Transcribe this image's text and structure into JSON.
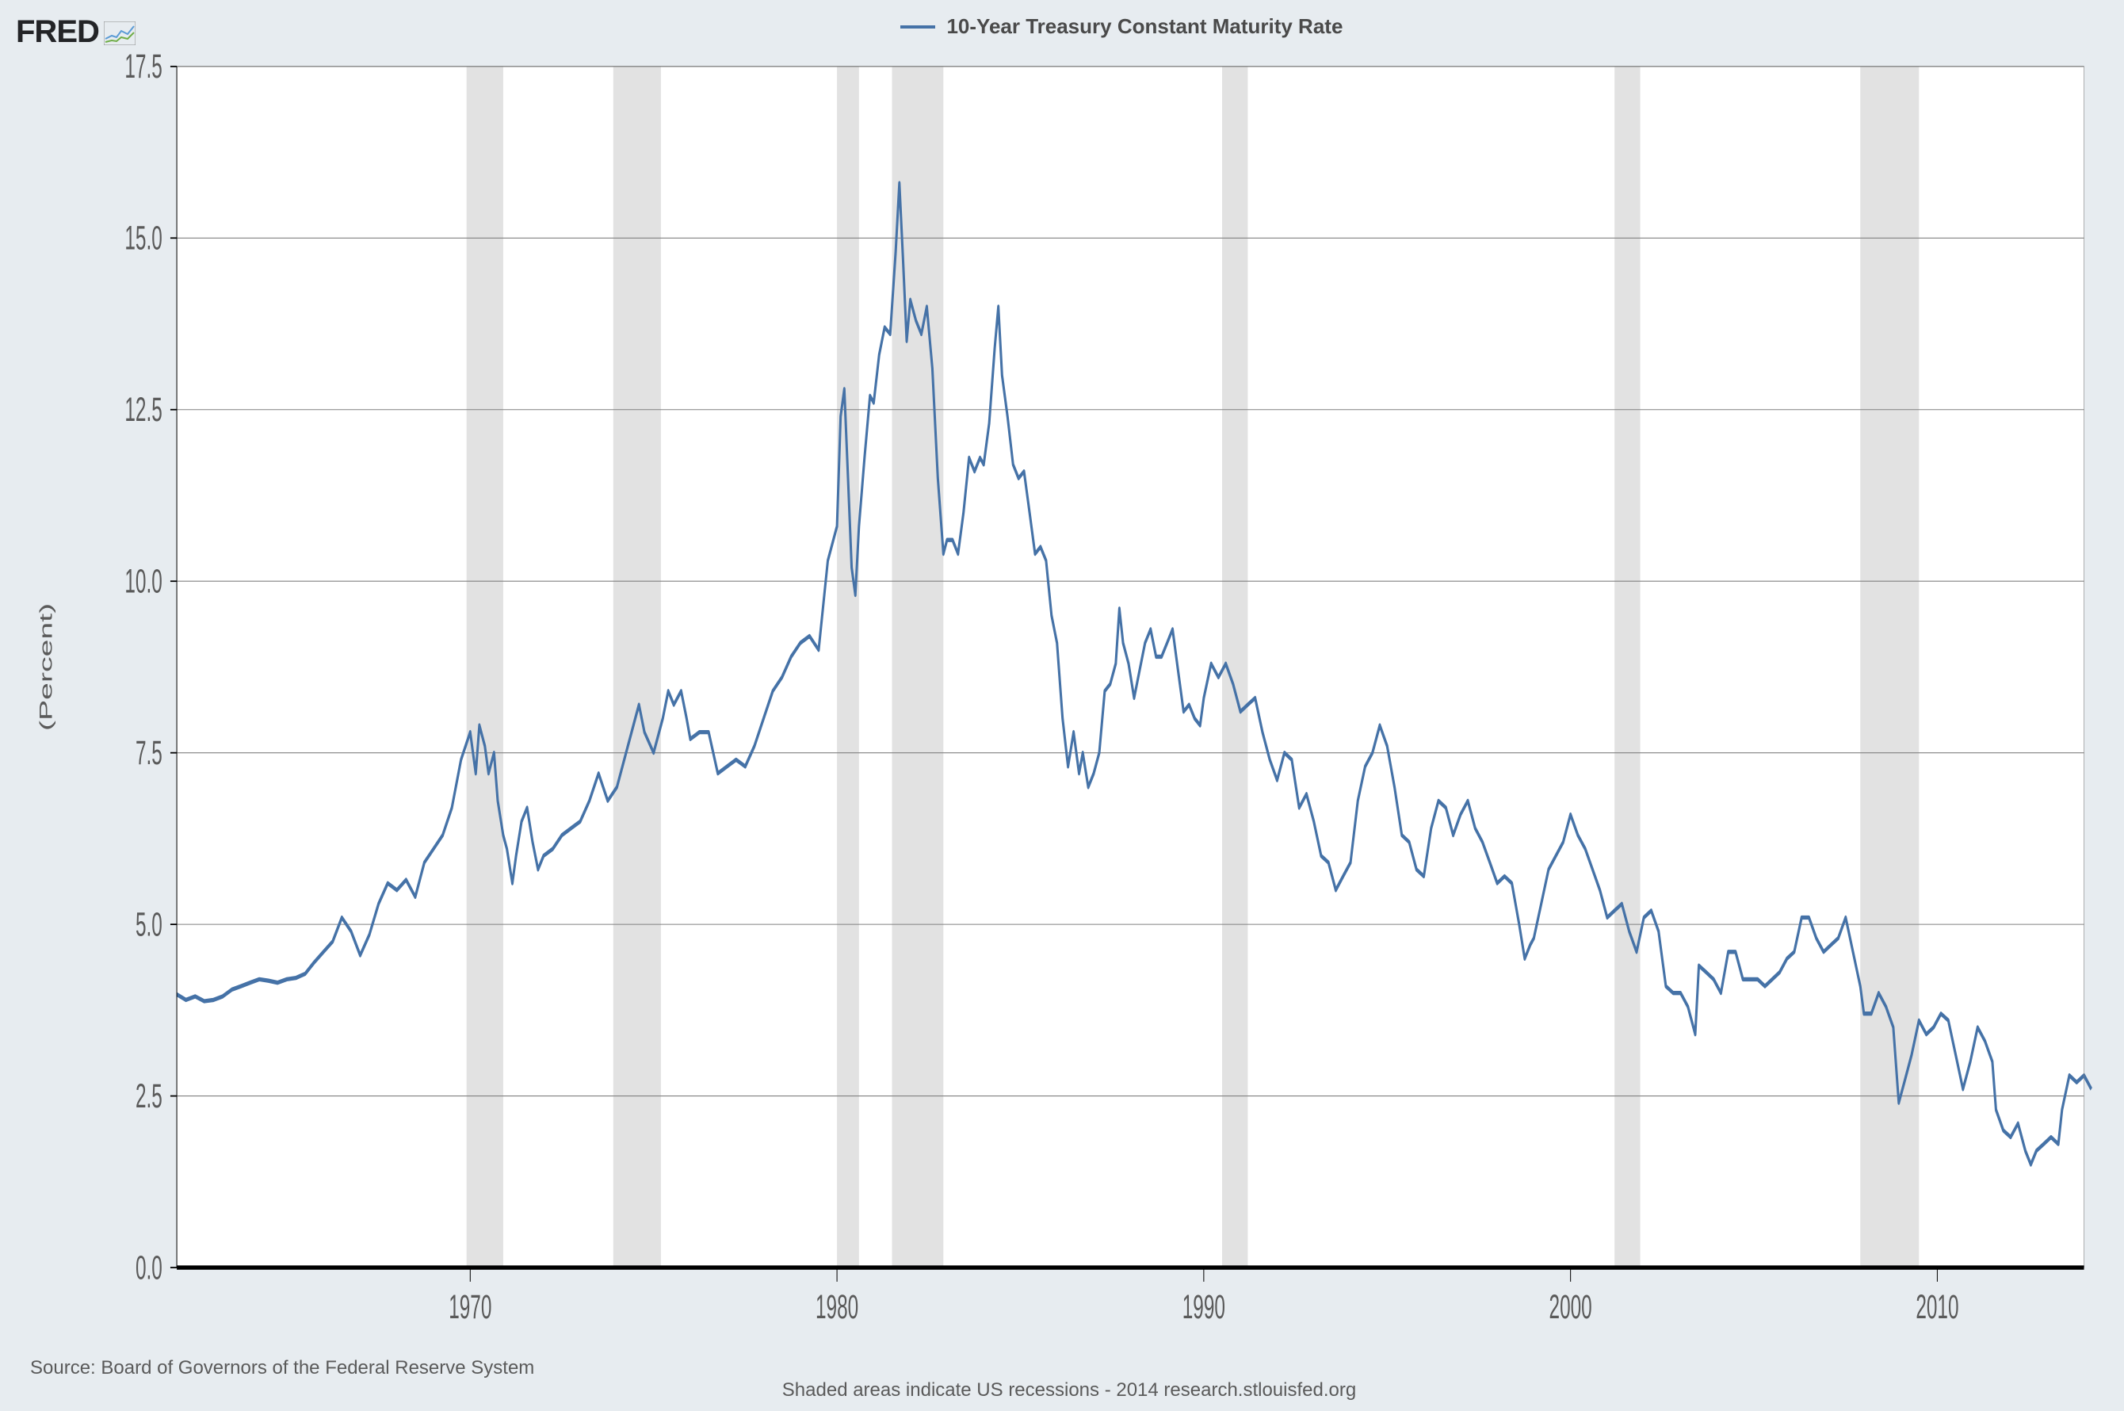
{
  "logo_text": "FRED",
  "legend_label": "10-Year Treasury Constant Maturity Rate",
  "ylabel": "(Percent)",
  "source_line": "Source: Board of Governors of the Federal Reserve System",
  "subnote_line": "Shaded areas indicate US recessions - 2014 research.stlouisfed.org",
  "chart": {
    "type": "line",
    "background_color": "#ffffff",
    "outer_background": "#e7ecf0",
    "grid_color": "#808080",
    "grid_width": 0.6,
    "axis_color": "#000000",
    "baseline_width": 3,
    "line_color": "#4572a7",
    "line_width": 3,
    "recession_fill": "#e2e2e2",
    "tick_label_color": "#5a5a5a",
    "tick_fontsize": 24,
    "ylabel_fontsize": 22,
    "title_fontsize": 26,
    "xlim": [
      1962,
      2014
    ],
    "ylim": [
      0,
      17.5
    ],
    "yticks": [
      0.0,
      2.5,
      5.0,
      7.5,
      10.0,
      12.5,
      15.0,
      17.5
    ],
    "ytick_labels": [
      "0.0",
      "2.5",
      "5.0",
      "7.5",
      "10.0",
      "12.5",
      "15.0",
      "17.5"
    ],
    "xticks": [
      1970,
      1980,
      1990,
      2000,
      2010
    ],
    "xtick_labels": [
      "1970",
      "1980",
      "1990",
      "2000",
      "2010"
    ],
    "recessions": [
      [
        1969.9,
        1970.9
      ],
      [
        1973.9,
        1975.2
      ],
      [
        1980.0,
        1980.6
      ],
      [
        1981.5,
        1982.9
      ],
      [
        1990.5,
        1991.2
      ],
      [
        2001.2,
        2001.9
      ],
      [
        2007.9,
        2009.5
      ]
    ],
    "series": [
      [
        1962.0,
        3.98
      ],
      [
        1962.25,
        3.9
      ],
      [
        1962.5,
        3.95
      ],
      [
        1962.75,
        3.88
      ],
      [
        1963.0,
        3.9
      ],
      [
        1963.25,
        3.95
      ],
      [
        1963.5,
        4.05
      ],
      [
        1963.75,
        4.1
      ],
      [
        1964.0,
        4.15
      ],
      [
        1964.25,
        4.2
      ],
      [
        1964.5,
        4.18
      ],
      [
        1964.75,
        4.15
      ],
      [
        1965.0,
        4.2
      ],
      [
        1965.25,
        4.22
      ],
      [
        1965.5,
        4.28
      ],
      [
        1965.75,
        4.45
      ],
      [
        1966.0,
        4.6
      ],
      [
        1966.25,
        4.75
      ],
      [
        1966.5,
        5.1
      ],
      [
        1966.75,
        4.9
      ],
      [
        1967.0,
        4.55
      ],
      [
        1967.25,
        4.85
      ],
      [
        1967.5,
        5.3
      ],
      [
        1967.75,
        5.6
      ],
      [
        1968.0,
        5.5
      ],
      [
        1968.25,
        5.65
      ],
      [
        1968.5,
        5.4
      ],
      [
        1968.75,
        5.9
      ],
      [
        1969.0,
        6.1
      ],
      [
        1969.25,
        6.3
      ],
      [
        1969.5,
        6.7
      ],
      [
        1969.75,
        7.4
      ],
      [
        1970.0,
        7.8
      ],
      [
        1970.15,
        7.2
      ],
      [
        1970.25,
        7.9
      ],
      [
        1970.4,
        7.6
      ],
      [
        1970.5,
        7.2
      ],
      [
        1970.65,
        7.5
      ],
      [
        1970.75,
        6.8
      ],
      [
        1970.9,
        6.3
      ],
      [
        1971.0,
        6.1
      ],
      [
        1971.15,
        5.6
      ],
      [
        1971.25,
        6.0
      ],
      [
        1971.4,
        6.5
      ],
      [
        1971.55,
        6.7
      ],
      [
        1971.7,
        6.2
      ],
      [
        1971.85,
        5.8
      ],
      [
        1972.0,
        6.0
      ],
      [
        1972.25,
        6.1
      ],
      [
        1972.5,
        6.3
      ],
      [
        1972.75,
        6.4
      ],
      [
        1973.0,
        6.5
      ],
      [
        1973.25,
        6.8
      ],
      [
        1973.5,
        7.2
      ],
      [
        1973.75,
        6.8
      ],
      [
        1974.0,
        7.0
      ],
      [
        1974.25,
        7.5
      ],
      [
        1974.5,
        8.0
      ],
      [
        1974.6,
        8.2
      ],
      [
        1974.75,
        7.8
      ],
      [
        1975.0,
        7.5
      ],
      [
        1975.25,
        8.0
      ],
      [
        1975.4,
        8.4
      ],
      [
        1975.55,
        8.2
      ],
      [
        1975.75,
        8.4
      ],
      [
        1975.9,
        8.0
      ],
      [
        1976.0,
        7.7
      ],
      [
        1976.25,
        7.8
      ],
      [
        1976.5,
        7.8
      ],
      [
        1976.75,
        7.2
      ],
      [
        1977.0,
        7.3
      ],
      [
        1977.25,
        7.4
      ],
      [
        1977.5,
        7.3
      ],
      [
        1977.75,
        7.6
      ],
      [
        1978.0,
        8.0
      ],
      [
        1978.25,
        8.4
      ],
      [
        1978.5,
        8.6
      ],
      [
        1978.75,
        8.9
      ],
      [
        1979.0,
        9.1
      ],
      [
        1979.25,
        9.2
      ],
      [
        1979.5,
        9.0
      ],
      [
        1979.75,
        10.3
      ],
      [
        1980.0,
        10.8
      ],
      [
        1980.1,
        12.4
      ],
      [
        1980.2,
        12.8
      ],
      [
        1980.3,
        11.5
      ],
      [
        1980.4,
        10.2
      ],
      [
        1980.5,
        9.8
      ],
      [
        1980.6,
        10.8
      ],
      [
        1980.75,
        11.8
      ],
      [
        1980.9,
        12.7
      ],
      [
        1981.0,
        12.6
      ],
      [
        1981.15,
        13.3
      ],
      [
        1981.3,
        13.7
      ],
      [
        1981.45,
        13.6
      ],
      [
        1981.6,
        14.8
      ],
      [
        1981.7,
        15.8
      ],
      [
        1981.8,
        14.7
      ],
      [
        1981.9,
        13.5
      ],
      [
        1982.0,
        14.1
      ],
      [
        1982.15,
        13.8
      ],
      [
        1982.3,
        13.6
      ],
      [
        1982.45,
        14.0
      ],
      [
        1982.6,
        13.1
      ],
      [
        1982.75,
        11.5
      ],
      [
        1982.9,
        10.4
      ],
      [
        1983.0,
        10.6
      ],
      [
        1983.15,
        10.6
      ],
      [
        1983.3,
        10.4
      ],
      [
        1983.45,
        11.0
      ],
      [
        1983.6,
        11.8
      ],
      [
        1983.75,
        11.6
      ],
      [
        1983.9,
        11.8
      ],
      [
        1984.0,
        11.7
      ],
      [
        1984.15,
        12.3
      ],
      [
        1984.3,
        13.4
      ],
      [
        1984.4,
        14.0
      ],
      [
        1984.5,
        13.0
      ],
      [
        1984.65,
        12.4
      ],
      [
        1984.8,
        11.7
      ],
      [
        1984.95,
        11.5
      ],
      [
        1985.1,
        11.6
      ],
      [
        1985.25,
        11.0
      ],
      [
        1985.4,
        10.4
      ],
      [
        1985.55,
        10.5
      ],
      [
        1985.7,
        10.3
      ],
      [
        1985.85,
        9.5
      ],
      [
        1986.0,
        9.1
      ],
      [
        1986.15,
        8.0
      ],
      [
        1986.3,
        7.3
      ],
      [
        1986.45,
        7.8
      ],
      [
        1986.6,
        7.2
      ],
      [
        1986.7,
        7.5
      ],
      [
        1986.85,
        7.0
      ],
      [
        1987.0,
        7.2
      ],
      [
        1987.15,
        7.5
      ],
      [
        1987.3,
        8.4
      ],
      [
        1987.45,
        8.5
      ],
      [
        1987.6,
        8.8
      ],
      [
        1987.7,
        9.6
      ],
      [
        1987.8,
        9.1
      ],
      [
        1987.95,
        8.8
      ],
      [
        1988.1,
        8.3
      ],
      [
        1988.25,
        8.7
      ],
      [
        1988.4,
        9.1
      ],
      [
        1988.55,
        9.3
      ],
      [
        1988.7,
        8.9
      ],
      [
        1988.85,
        8.9
      ],
      [
        1989.0,
        9.1
      ],
      [
        1989.15,
        9.3
      ],
      [
        1989.3,
        8.7
      ],
      [
        1989.45,
        8.1
      ],
      [
        1989.6,
        8.2
      ],
      [
        1989.75,
        8.0
      ],
      [
        1989.9,
        7.9
      ],
      [
        1990.0,
        8.3
      ],
      [
        1990.2,
        8.8
      ],
      [
        1990.4,
        8.6
      ],
      [
        1990.6,
        8.8
      ],
      [
        1990.8,
        8.5
      ],
      [
        1991.0,
        8.1
      ],
      [
        1991.2,
        8.2
      ],
      [
        1991.4,
        8.3
      ],
      [
        1991.6,
        7.8
      ],
      [
        1991.8,
        7.4
      ],
      [
        1992.0,
        7.1
      ],
      [
        1992.2,
        7.5
      ],
      [
        1992.4,
        7.4
      ],
      [
        1992.6,
        6.7
      ],
      [
        1992.8,
        6.9
      ],
      [
        1993.0,
        6.5
      ],
      [
        1993.2,
        6.0
      ],
      [
        1993.4,
        5.9
      ],
      [
        1993.6,
        5.5
      ],
      [
        1993.8,
        5.7
      ],
      [
        1994.0,
        5.9
      ],
      [
        1994.2,
        6.8
      ],
      [
        1994.4,
        7.3
      ],
      [
        1994.6,
        7.5
      ],
      [
        1994.8,
        7.9
      ],
      [
        1995.0,
        7.6
      ],
      [
        1995.2,
        7.0
      ],
      [
        1995.4,
        6.3
      ],
      [
        1995.6,
        6.2
      ],
      [
        1995.8,
        5.8
      ],
      [
        1996.0,
        5.7
      ],
      [
        1996.2,
        6.4
      ],
      [
        1996.4,
        6.8
      ],
      [
        1996.6,
        6.7
      ],
      [
        1996.8,
        6.3
      ],
      [
        1997.0,
        6.6
      ],
      [
        1997.2,
        6.8
      ],
      [
        1997.4,
        6.4
      ],
      [
        1997.6,
        6.2
      ],
      [
        1997.8,
        5.9
      ],
      [
        1998.0,
        5.6
      ],
      [
        1998.2,
        5.7
      ],
      [
        1998.4,
        5.6
      ],
      [
        1998.6,
        5.0
      ],
      [
        1998.75,
        4.5
      ],
      [
        1998.9,
        4.7
      ],
      [
        1999.0,
        4.8
      ],
      [
        1999.2,
        5.3
      ],
      [
        1999.4,
        5.8
      ],
      [
        1999.6,
        6.0
      ],
      [
        1999.8,
        6.2
      ],
      [
        2000.0,
        6.6
      ],
      [
        2000.2,
        6.3
      ],
      [
        2000.4,
        6.1
      ],
      [
        2000.6,
        5.8
      ],
      [
        2000.8,
        5.5
      ],
      [
        2001.0,
        5.1
      ],
      [
        2001.2,
        5.2
      ],
      [
        2001.4,
        5.3
      ],
      [
        2001.6,
        4.9
      ],
      [
        2001.8,
        4.6
      ],
      [
        2002.0,
        5.1
      ],
      [
        2002.2,
        5.2
      ],
      [
        2002.4,
        4.9
      ],
      [
        2002.6,
        4.1
      ],
      [
        2002.8,
        4.0
      ],
      [
        2003.0,
        4.0
      ],
      [
        2003.2,
        3.8
      ],
      [
        2003.4,
        3.4
      ],
      [
        2003.5,
        4.4
      ],
      [
        2003.7,
        4.3
      ],
      [
        2003.9,
        4.2
      ],
      [
        2004.1,
        4.0
      ],
      [
        2004.3,
        4.6
      ],
      [
        2004.5,
        4.6
      ],
      [
        2004.7,
        4.2
      ],
      [
        2004.9,
        4.2
      ],
      [
        2005.1,
        4.2
      ],
      [
        2005.3,
        4.1
      ],
      [
        2005.5,
        4.2
      ],
      [
        2005.7,
        4.3
      ],
      [
        2005.9,
        4.5
      ],
      [
        2006.1,
        4.6
      ],
      [
        2006.3,
        5.1
      ],
      [
        2006.5,
        5.1
      ],
      [
        2006.7,
        4.8
      ],
      [
        2006.9,
        4.6
      ],
      [
        2007.1,
        4.7
      ],
      [
        2007.3,
        4.8
      ],
      [
        2007.5,
        5.1
      ],
      [
        2007.7,
        4.6
      ],
      [
        2007.9,
        4.1
      ],
      [
        2008.0,
        3.7
      ],
      [
        2008.2,
        3.7
      ],
      [
        2008.4,
        4.0
      ],
      [
        2008.6,
        3.8
      ],
      [
        2008.8,
        3.5
      ],
      [
        2008.95,
        2.4
      ],
      [
        2009.1,
        2.7
      ],
      [
        2009.3,
        3.1
      ],
      [
        2009.5,
        3.6
      ],
      [
        2009.7,
        3.4
      ],
      [
        2009.9,
        3.5
      ],
      [
        2010.1,
        3.7
      ],
      [
        2010.3,
        3.6
      ],
      [
        2010.5,
        3.1
      ],
      [
        2010.7,
        2.6
      ],
      [
        2010.9,
        3.0
      ],
      [
        2011.1,
        3.5
      ],
      [
        2011.3,
        3.3
      ],
      [
        2011.5,
        3.0
      ],
      [
        2011.6,
        2.3
      ],
      [
        2011.8,
        2.0
      ],
      [
        2012.0,
        1.9
      ],
      [
        2012.2,
        2.1
      ],
      [
        2012.4,
        1.7
      ],
      [
        2012.55,
        1.5
      ],
      [
        2012.7,
        1.7
      ],
      [
        2012.9,
        1.8
      ],
      [
        2013.1,
        1.9
      ],
      [
        2013.3,
        1.8
      ],
      [
        2013.4,
        2.3
      ],
      [
        2013.6,
        2.8
      ],
      [
        2013.8,
        2.7
      ],
      [
        2014.0,
        2.8
      ],
      [
        2014.1,
        2.7
      ],
      [
        2014.2,
        2.6
      ]
    ]
  }
}
